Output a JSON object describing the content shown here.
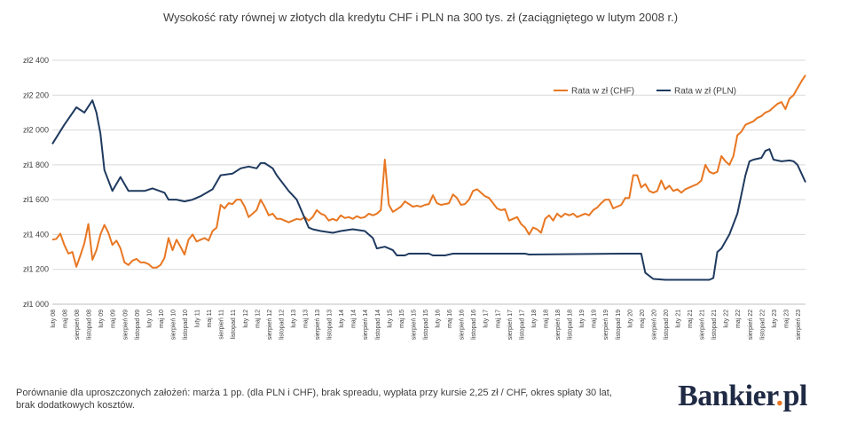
{
  "chart_data": {
    "type": "line",
    "title": "Wysokość raty równej w złotych dla kredytu CHF i PLN na 300 tys. zł (zaciągniętego w lutym 2008 r.)",
    "ylim": [
      1000,
      2400
    ],
    "yticks": [
      "zł1 000",
      "zł1 200",
      "zł1 400",
      "zł1 600",
      "zł1 800",
      "zł2 000",
      "zł2 200",
      "zł2 400"
    ],
    "ytick_values": [
      1000,
      1200,
      1400,
      1600,
      1800,
      2000,
      2200,
      2400
    ],
    "grid": true,
    "legend_position": "top-right",
    "x_start": "2008-02",
    "x_end": "2023-10",
    "x_tick_labels": [
      "luty 08",
      "maj 08",
      "sierpień 08",
      "listopad 08",
      "luty 09",
      "maj 09",
      "sierpień 09",
      "listopad 09",
      "luty 10",
      "maj 10",
      "sierpień 10",
      "listopad 10",
      "luty 11",
      "maj 11",
      "sierpień 11",
      "listopad 11",
      "luty 12",
      "maj 12",
      "sierpień 12",
      "listopad 12",
      "luty 13",
      "maj 13",
      "sierpień 13",
      "listopad 13",
      "luty 14",
      "maj 14",
      "sierpień 14",
      "listopad 14",
      "luty 15",
      "maj 15",
      "sierpień 15",
      "listopad 15",
      "luty 16",
      "maj 16",
      "sierpień 16",
      "listopad 16",
      "luty 17",
      "maj 17",
      "sierpień 17",
      "listopad 17",
      "luty 18",
      "maj 18",
      "sierpień 18",
      "listopad 18",
      "luty 19",
      "maj 19",
      "sierpień 19",
      "listopad 19",
      "luty 20",
      "maj 20",
      "sierpień 20",
      "listopad 20",
      "luty 21",
      "maj 21",
      "sierpień 21",
      "listopad 21",
      "luty 22",
      "maj 22",
      "sierpień 22",
      "listopad 22",
      "luty 23",
      "maj 23",
      "sierpień 23"
    ],
    "series": [
      {
        "name": "Rata w zł (CHF)",
        "color": "#e87722",
        "points": [
          [
            "2008-02",
            1370
          ],
          [
            "2008-03",
            1375
          ],
          [
            "2008-04",
            1405
          ],
          [
            "2008-05",
            1340
          ],
          [
            "2008-06",
            1290
          ],
          [
            "2008-07",
            1300
          ],
          [
            "2008-08",
            1215
          ],
          [
            "2008-09",
            1280
          ],
          [
            "2008-10",
            1350
          ],
          [
            "2008-11",
            1460
          ],
          [
            "2008-12",
            1255
          ],
          [
            "2009-01",
            1310
          ],
          [
            "2009-02",
            1400
          ],
          [
            "2009-03",
            1455
          ],
          [
            "2009-04",
            1410
          ],
          [
            "2009-05",
            1340
          ],
          [
            "2009-06",
            1365
          ],
          [
            "2009-07",
            1320
          ],
          [
            "2009-08",
            1240
          ],
          [
            "2009-09",
            1225
          ],
          [
            "2009-10",
            1250
          ],
          [
            "2009-11",
            1260
          ],
          [
            "2009-12",
            1240
          ],
          [
            "2010-01",
            1240
          ],
          [
            "2010-02",
            1230
          ],
          [
            "2010-03",
            1210
          ],
          [
            "2010-04",
            1210
          ],
          [
            "2010-05",
            1225
          ],
          [
            "2010-06",
            1265
          ],
          [
            "2010-07",
            1380
          ],
          [
            "2010-08",
            1310
          ],
          [
            "2010-09",
            1370
          ],
          [
            "2010-10",
            1330
          ],
          [
            "2010-11",
            1285
          ],
          [
            "2010-12",
            1370
          ],
          [
            "2011-01",
            1400
          ],
          [
            "2011-02",
            1360
          ],
          [
            "2011-03",
            1370
          ],
          [
            "2011-04",
            1380
          ],
          [
            "2011-05",
            1365
          ],
          [
            "2011-06",
            1420
          ],
          [
            "2011-07",
            1440
          ],
          [
            "2011-08",
            1570
          ],
          [
            "2011-09",
            1550
          ],
          [
            "2011-10",
            1580
          ],
          [
            "2011-11",
            1575
          ],
          [
            "2011-12",
            1600
          ],
          [
            "2012-01",
            1600
          ],
          [
            "2012-02",
            1560
          ],
          [
            "2012-03",
            1500
          ],
          [
            "2012-04",
            1520
          ],
          [
            "2012-05",
            1540
          ],
          [
            "2012-06",
            1600
          ],
          [
            "2012-07",
            1560
          ],
          [
            "2012-08",
            1510
          ],
          [
            "2012-09",
            1520
          ],
          [
            "2012-10",
            1490
          ],
          [
            "2012-11",
            1490
          ],
          [
            "2012-12",
            1480
          ],
          [
            "2013-01",
            1470
          ],
          [
            "2013-02",
            1480
          ],
          [
            "2013-03",
            1490
          ],
          [
            "2013-04",
            1485
          ],
          [
            "2013-05",
            1500
          ],
          [
            "2013-06",
            1480
          ],
          [
            "2013-07",
            1500
          ],
          [
            "2013-08",
            1540
          ],
          [
            "2013-09",
            1520
          ],
          [
            "2013-10",
            1510
          ],
          [
            "2013-11",
            1480
          ],
          [
            "2013-12",
            1490
          ],
          [
            "2014-01",
            1480
          ],
          [
            "2014-02",
            1510
          ],
          [
            "2014-03",
            1495
          ],
          [
            "2014-04",
            1500
          ],
          [
            "2014-05",
            1490
          ],
          [
            "2014-06",
            1505
          ],
          [
            "2014-07",
            1495
          ],
          [
            "2014-08",
            1500
          ],
          [
            "2014-09",
            1520
          ],
          [
            "2014-10",
            1510
          ],
          [
            "2014-11",
            1520
          ],
          [
            "2014-12",
            1540
          ],
          [
            "2015-01",
            1830
          ],
          [
            "2015-02",
            1570
          ],
          [
            "2015-03",
            1530
          ],
          [
            "2015-04",
            1545
          ],
          [
            "2015-05",
            1560
          ],
          [
            "2015-06",
            1590
          ],
          [
            "2015-07",
            1575
          ],
          [
            "2015-08",
            1560
          ],
          [
            "2015-09",
            1565
          ],
          [
            "2015-10",
            1560
          ],
          [
            "2015-11",
            1570
          ],
          [
            "2015-12",
            1575
          ],
          [
            "2016-01",
            1625
          ],
          [
            "2016-02",
            1580
          ],
          [
            "2016-03",
            1570
          ],
          [
            "2016-04",
            1575
          ],
          [
            "2016-05",
            1580
          ],
          [
            "2016-06",
            1630
          ],
          [
            "2016-07",
            1610
          ],
          [
            "2016-08",
            1570
          ],
          [
            "2016-09",
            1575
          ],
          [
            "2016-10",
            1600
          ],
          [
            "2016-11",
            1650
          ],
          [
            "2016-12",
            1660
          ],
          [
            "2017-01",
            1640
          ],
          [
            "2017-02",
            1620
          ],
          [
            "2017-03",
            1610
          ],
          [
            "2017-04",
            1580
          ],
          [
            "2017-05",
            1550
          ],
          [
            "2017-06",
            1540
          ],
          [
            "2017-07",
            1545
          ],
          [
            "2017-08",
            1480
          ],
          [
            "2017-09",
            1490
          ],
          [
            "2017-10",
            1500
          ],
          [
            "2017-11",
            1460
          ],
          [
            "2017-12",
            1440
          ],
          [
            "2018-01",
            1400
          ],
          [
            "2018-02",
            1440
          ],
          [
            "2018-03",
            1430
          ],
          [
            "2018-04",
            1410
          ],
          [
            "2018-05",
            1490
          ],
          [
            "2018-06",
            1510
          ],
          [
            "2018-07",
            1480
          ],
          [
            "2018-08",
            1520
          ],
          [
            "2018-09",
            1500
          ],
          [
            "2018-10",
            1520
          ],
          [
            "2018-11",
            1510
          ],
          [
            "2018-12",
            1520
          ],
          [
            "2019-01",
            1500
          ],
          [
            "2019-02",
            1510
          ],
          [
            "2019-03",
            1520
          ],
          [
            "2019-04",
            1510
          ],
          [
            "2019-05",
            1540
          ],
          [
            "2019-06",
            1555
          ],
          [
            "2019-07",
            1580
          ],
          [
            "2019-08",
            1600
          ],
          [
            "2019-09",
            1600
          ],
          [
            "2019-10",
            1550
          ],
          [
            "2019-11",
            1560
          ],
          [
            "2019-12",
            1570
          ],
          [
            "2020-01",
            1610
          ],
          [
            "2020-02",
            1610
          ],
          [
            "2020-03",
            1740
          ],
          [
            "2020-04",
            1740
          ],
          [
            "2020-05",
            1670
          ],
          [
            "2020-06",
            1690
          ],
          [
            "2020-07",
            1650
          ],
          [
            "2020-08",
            1640
          ],
          [
            "2020-09",
            1650
          ],
          [
            "2020-10",
            1710
          ],
          [
            "2020-11",
            1660
          ],
          [
            "2020-12",
            1680
          ],
          [
            "2021-01",
            1650
          ],
          [
            "2021-02",
            1660
          ],
          [
            "2021-03",
            1640
          ],
          [
            "2021-04",
            1660
          ],
          [
            "2021-05",
            1670
          ],
          [
            "2021-06",
            1680
          ],
          [
            "2021-07",
            1690
          ],
          [
            "2021-08",
            1710
          ],
          [
            "2021-09",
            1800
          ],
          [
            "2021-10",
            1760
          ],
          [
            "2021-11",
            1750
          ],
          [
            "2021-12",
            1760
          ],
          [
            "2022-01",
            1850
          ],
          [
            "2022-02",
            1820
          ],
          [
            "2022-03",
            1800
          ],
          [
            "2022-04",
            1850
          ],
          [
            "2022-05",
            1970
          ],
          [
            "2022-06",
            1990
          ],
          [
            "2022-07",
            2030
          ],
          [
            "2022-08",
            2040
          ],
          [
            "2022-09",
            2050
          ],
          [
            "2022-10",
            2070
          ],
          [
            "2022-11",
            2080
          ],
          [
            "2022-12",
            2100
          ],
          [
            "2023-01",
            2110
          ],
          [
            "2023-02",
            2130
          ],
          [
            "2023-03",
            2150
          ],
          [
            "2023-04",
            2160
          ],
          [
            "2023-05",
            2120
          ],
          [
            "2023-06",
            2180
          ],
          [
            "2023-07",
            2200
          ],
          [
            "2023-08",
            2240
          ],
          [
            "2023-09",
            2280
          ],
          [
            "2023-10",
            2315
          ]
        ]
      },
      {
        "name": "Rata w zł (PLN)",
        "color": "#1f3a5f",
        "points": [
          [
            "2008-02",
            1920
          ],
          [
            "2008-05",
            2030
          ],
          [
            "2008-08",
            2130
          ],
          [
            "2008-10",
            2100
          ],
          [
            "2008-12",
            2170
          ],
          [
            "2009-01",
            2100
          ],
          [
            "2009-02",
            1980
          ],
          [
            "2009-03",
            1770
          ],
          [
            "2009-05",
            1650
          ],
          [
            "2009-07",
            1730
          ],
          [
            "2009-09",
            1650
          ],
          [
            "2010-01",
            1650
          ],
          [
            "2010-03",
            1665
          ],
          [
            "2010-06",
            1640
          ],
          [
            "2010-07",
            1600
          ],
          [
            "2010-09",
            1600
          ],
          [
            "2010-11",
            1590
          ],
          [
            "2011-01",
            1600
          ],
          [
            "2011-03",
            1620
          ],
          [
            "2011-06",
            1660
          ],
          [
            "2011-08",
            1740
          ],
          [
            "2011-11",
            1750
          ],
          [
            "2012-01",
            1780
          ],
          [
            "2012-03",
            1790
          ],
          [
            "2012-05",
            1780
          ],
          [
            "2012-06",
            1810
          ],
          [
            "2012-07",
            1810
          ],
          [
            "2012-09",
            1780
          ],
          [
            "2012-10",
            1740
          ],
          [
            "2013-01",
            1650
          ],
          [
            "2013-03",
            1600
          ],
          [
            "2013-06",
            1440
          ],
          [
            "2013-07",
            1430
          ],
          [
            "2013-09",
            1420
          ],
          [
            "2013-12",
            1410
          ],
          [
            "2014-02",
            1420
          ],
          [
            "2014-05",
            1430
          ],
          [
            "2014-08",
            1420
          ],
          [
            "2014-10",
            1380
          ],
          [
            "2014-11",
            1320
          ],
          [
            "2015-01",
            1330
          ],
          [
            "2015-03",
            1310
          ],
          [
            "2015-04",
            1280
          ],
          [
            "2015-06",
            1280
          ],
          [
            "2015-07",
            1290
          ],
          [
            "2015-12",
            1290
          ],
          [
            "2016-01",
            1280
          ],
          [
            "2016-04",
            1280
          ],
          [
            "2016-06",
            1290
          ],
          [
            "2017-12",
            1290
          ],
          [
            "2018-01",
            1285
          ],
          [
            "2019-12",
            1290
          ],
          [
            "2020-05",
            1290
          ],
          [
            "2020-06",
            1180
          ],
          [
            "2020-08",
            1145
          ],
          [
            "2020-11",
            1140
          ],
          [
            "2021-03",
            1140
          ],
          [
            "2021-10",
            1140
          ],
          [
            "2021-11",
            1150
          ],
          [
            "2021-12",
            1300
          ],
          [
            "2022-01",
            1320
          ],
          [
            "2022-03",
            1400
          ],
          [
            "2022-05",
            1520
          ],
          [
            "2022-07",
            1740
          ],
          [
            "2022-08",
            1820
          ],
          [
            "2022-09",
            1830
          ],
          [
            "2022-11",
            1840
          ],
          [
            "2022-12",
            1880
          ],
          [
            "2023-01",
            1890
          ],
          [
            "2023-02",
            1830
          ],
          [
            "2023-04",
            1820
          ],
          [
            "2023-06",
            1825
          ],
          [
            "2023-07",
            1820
          ],
          [
            "2023-08",
            1800
          ],
          [
            "2023-10",
            1700
          ]
        ]
      }
    ]
  },
  "footnote": {
    "line1": "Porównanie dla uproszczonych założeń: marża 1 pp. (dla PLN i CHF), brak spreadu, wypłata przy kursie 2,25 zł / CHF, okres spłaty 30 lat,",
    "line2": "brak dodatkowych kosztów."
  },
  "logo": {
    "text": "Bankier",
    "dot": ".",
    "suffix": "pl",
    "accent_color": "#e87722"
  }
}
